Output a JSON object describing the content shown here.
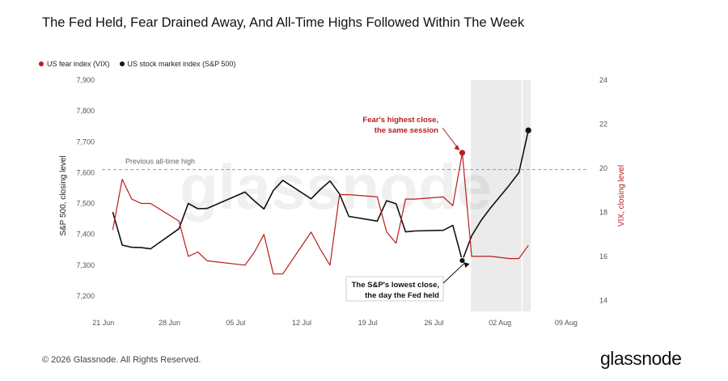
{
  "title": "The Fed Held, Fear Drained Away, And All-Time Highs Followed Within The Week",
  "legend": {
    "vix_label": "US fear index (VIX)",
    "spx_label": "US stock market index (S&P 500)"
  },
  "footer": {
    "copyright": "© 2026 Glassnode. All Rights Reserved.",
    "brand": "glassnode",
    "watermark": "glassnode"
  },
  "colors": {
    "vix": "#b91c1c",
    "spx": "#111111",
    "shade": "#ebebeb",
    "grid_ref": "#9a9a9a"
  },
  "chart_data": {
    "type": "line",
    "xlabel": "",
    "ylabel_left": "S&P 500, closing level",
    "ylabel_right": "VIX, closing level",
    "x_ticks": [
      "21 Jun",
      "28 Jun",
      "05 Jul",
      "12 Jul",
      "19 Jul",
      "26 Jul",
      "02 Aug",
      "09 Aug"
    ],
    "xlim": [
      "21 Jun",
      "11 Aug"
    ],
    "y_left_ticks": [
      7200,
      7300,
      7400,
      7500,
      7600,
      7700,
      7800,
      7900
    ],
    "y_left_tick_labels": [
      "7,200",
      "7,300",
      "7,400",
      "7,500",
      "7,600",
      "7,700",
      "7,800",
      "7,900"
    ],
    "ylim_left": [
      7150,
      7900
    ],
    "y_right_ticks": [
      14,
      16,
      18,
      20,
      22,
      24
    ],
    "ylim_right": [
      13.5,
      24
    ],
    "grid": false,
    "legend_position": "top-left",
    "shaded_region": {
      "x": [
        "30 Jul",
        "05 Aug"
      ],
      "divider": "04 Aug"
    },
    "reference_line": {
      "label": "Previous all-time high",
      "value": 7610
    },
    "series": [
      {
        "name": "US stock market index (S&P 500)",
        "axis": "left",
        "x": [
          "22 Jun",
          "23 Jun",
          "24 Jun",
          "25 Jun",
          "26 Jun",
          "29 Jun",
          "30 Jun",
          "01 Jul",
          "02 Jul",
          "06 Jul",
          "07 Jul",
          "08 Jul",
          "09 Jul",
          "10 Jul",
          "13 Jul",
          "14 Jul",
          "15 Jul",
          "16 Jul",
          "17 Jul",
          "20 Jul",
          "21 Jul",
          "22 Jul",
          "23 Jul",
          "24 Jul",
          "27 Jul",
          "28 Jul",
          "29 Jul",
          "30 Jul",
          "31 Jul",
          "01 Aug",
          "03 Aug",
          "04 Aug",
          "05 Aug"
        ],
        "values": [
          7472,
          7365,
          7358,
          7357,
          7353,
          7418,
          7500,
          7483,
          7484,
          7537,
          7508,
          7482,
          7542,
          7575,
          7515,
          7546,
          7573,
          7531,
          7458,
          7443,
          7509,
          7499,
          7408,
          7411,
          7413,
          7429,
          7315,
          7395,
          7445,
          7486,
          7560,
          7600,
          7737
        ]
      },
      {
        "name": "US fear index (VIX)",
        "axis": "right",
        "x": [
          "22 Jun",
          "23 Jun",
          "24 Jun",
          "25 Jun",
          "26 Jun",
          "29 Jun",
          "30 Jun",
          "01 Jul",
          "02 Jul",
          "06 Jul",
          "07 Jul",
          "08 Jul",
          "09 Jul",
          "10 Jul",
          "13 Jul",
          "14 Jul",
          "15 Jul",
          "16 Jul",
          "17 Jul",
          "20 Jul",
          "21 Jul",
          "22 Jul",
          "23 Jul",
          "24 Jul",
          "27 Jul",
          "28 Jul",
          "29 Jul",
          "30 Jul",
          "31 Jul",
          "01 Aug",
          "03 Aug",
          "04 Aug",
          "05 Aug"
        ],
        "values": [
          17.2,
          19.5,
          18.6,
          18.4,
          18.4,
          17.6,
          16.0,
          16.2,
          15.8,
          15.6,
          16.2,
          17.0,
          15.2,
          15.2,
          17.1,
          16.3,
          15.6,
          18.8,
          18.8,
          18.7,
          17.1,
          16.6,
          18.6,
          18.6,
          18.7,
          18.3,
          20.7,
          16.0,
          16.0,
          16.0,
          15.9,
          15.9,
          16.5
        ]
      }
    ],
    "annotations": [
      {
        "text_line1": "Fear's highest close,",
        "text_line2": "the same session",
        "series": "VIX",
        "x": "29 Jul",
        "value": 20.7
      },
      {
        "text_line1": "The S&P's lowest close,",
        "text_line2": "the day the Fed held",
        "series": "S&P 500",
        "x": "29 Jul",
        "value": 7315
      }
    ]
  }
}
